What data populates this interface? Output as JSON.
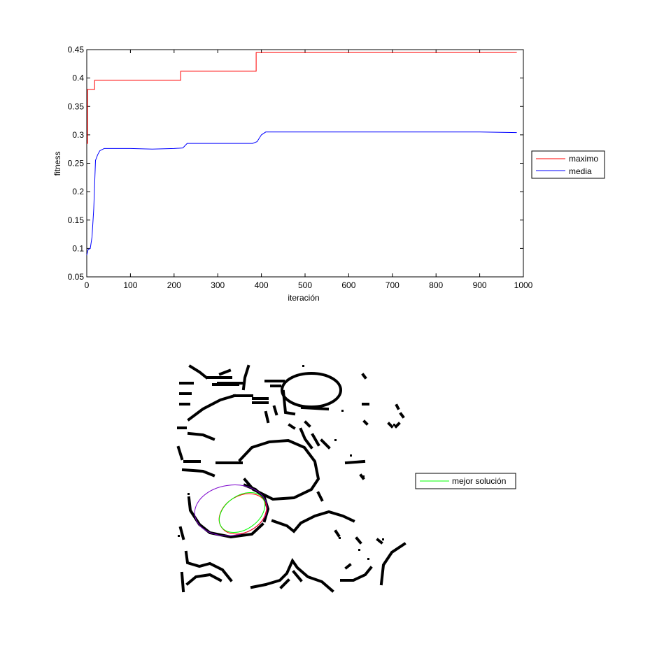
{
  "chart_data": [
    {
      "type": "line",
      "title": "",
      "xlabel": "iteración",
      "ylabel": "fitness",
      "xlim": [
        0,
        1000
      ],
      "ylim": [
        0.05,
        0.45
      ],
      "grid": false,
      "legend_placement": "outside-right",
      "x_ticks": [
        "0",
        "100",
        "200",
        "300",
        "400",
        "500",
        "600",
        "700",
        "800",
        "900",
        "1000"
      ],
      "y_ticks": [
        "0.05",
        "0.1",
        "0.15",
        "0.2",
        "0.25",
        "0.3",
        "0.35",
        "0.4",
        "0.45"
      ],
      "series": [
        {
          "name": "maximo",
          "color": "#ff0000",
          "x": [
            0,
            2,
            2,
            4,
            4,
            18,
            18,
            215,
            215,
            388,
            388,
            985
          ],
          "y": [
            0.285,
            0.285,
            0.38,
            0.38,
            0.38,
            0.38,
            0.396,
            0.396,
            0.412,
            0.412,
            0.445,
            0.445
          ]
        },
        {
          "name": "media",
          "color": "#0000ff",
          "x": [
            0,
            3,
            8,
            12,
            16,
            20,
            25,
            30,
            40,
            100,
            150,
            200,
            220,
            230,
            300,
            380,
            390,
            400,
            410,
            500,
            600,
            700,
            800,
            900,
            985
          ],
          "y": [
            0.088,
            0.098,
            0.1,
            0.12,
            0.17,
            0.255,
            0.265,
            0.272,
            0.276,
            0.276,
            0.275,
            0.276,
            0.277,
            0.285,
            0.285,
            0.285,
            0.288,
            0.3,
            0.305,
            0.305,
            0.305,
            0.305,
            0.305,
            0.305,
            0.304
          ]
        }
      ]
    },
    {
      "type": "image",
      "title": "",
      "legend": [
        {
          "name": "mejor solución",
          "color": "#00ff00"
        }
      ],
      "overlay_ellipses": [
        {
          "name": "mejor solución",
          "color": "#00ff00"
        },
        {
          "name": "",
          "color": "#7a00cc"
        },
        {
          "name": "",
          "color": "#ff0000"
        }
      ]
    }
  ]
}
